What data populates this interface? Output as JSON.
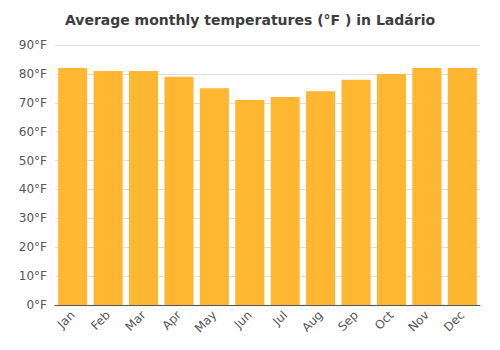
{
  "chart_data": {
    "type": "bar",
    "title": "Average monthly temperatures (°F ) in Ladário",
    "categories": [
      "Jan",
      "Feb",
      "Mar",
      "Apr",
      "May",
      "Jun",
      "Jul",
      "Aug",
      "Sep",
      "Oct",
      "Nov",
      "Dec"
    ],
    "values": [
      82,
      81,
      81,
      79,
      75,
      71,
      72,
      74,
      78,
      80,
      82,
      82
    ],
    "color": "#FFB732",
    "ylim": [
      0,
      90
    ],
    "yticks": [
      {
        "value": 0,
        "label": "0°F"
      },
      {
        "value": 10,
        "label": "10°F"
      },
      {
        "value": 20,
        "label": "20°F"
      },
      {
        "value": 30,
        "label": "30°F"
      },
      {
        "value": 40,
        "label": "40°F"
      },
      {
        "value": 50,
        "label": "50°F"
      },
      {
        "value": 60,
        "label": "60°F"
      },
      {
        "value": 70,
        "label": "70°F"
      },
      {
        "value": 80,
        "label": "80°F"
      },
      {
        "value": 90,
        "label": "90°F"
      }
    ],
    "grid": true
  }
}
